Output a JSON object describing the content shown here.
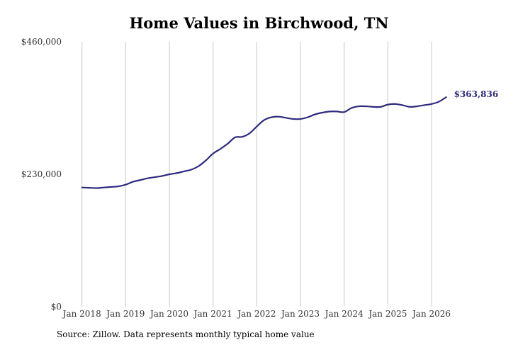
{
  "title": "Home Values in Birchwood, TN",
  "source": "Source: Zillow. Data represents monthly typical home value",
  "colors": {
    "line": "#2e2a7e",
    "grid": "#c8c8c8",
    "text": "#333333"
  },
  "chart_data": {
    "type": "line",
    "title": "Home Values in Birchwood, TN",
    "xlabel": "",
    "ylabel": "",
    "ylim": [
      0,
      460000
    ],
    "xlim": [
      "2017-08",
      "2026-08"
    ],
    "y_ticks": [
      {
        "value": 0,
        "label": "$0"
      },
      {
        "value": 230000,
        "label": "$230,000"
      },
      {
        "value": 460000,
        "label": "$460,000"
      }
    ],
    "x_ticks": [
      {
        "value": "2018-01",
        "label": "Jan 2018"
      },
      {
        "value": "2019-01",
        "label": "Jan 2019"
      },
      {
        "value": "2020-01",
        "label": "Jan 2020"
      },
      {
        "value": "2021-01",
        "label": "Jan 2021"
      },
      {
        "value": "2022-01",
        "label": "Jan 2022"
      },
      {
        "value": "2023-01",
        "label": "Jan 2023"
      },
      {
        "value": "2024-01",
        "label": "Jan 2024"
      },
      {
        "value": "2025-01",
        "label": "Jan 2025"
      },
      {
        "value": "2026-01",
        "label": "Jan 2026"
      }
    ],
    "grid": "vertical",
    "end_label": "$363,836",
    "series": [
      {
        "x": [
          "2018-01",
          "2018-03",
          "2018-05",
          "2018-07",
          "2018-09",
          "2018-11",
          "2019-01",
          "2019-03",
          "2019-05",
          "2019-07",
          "2019-09",
          "2019-11",
          "2020-01",
          "2020-03",
          "2020-05",
          "2020-07",
          "2020-09",
          "2020-11",
          "2021-01",
          "2021-03",
          "2021-05",
          "2021-07",
          "2021-09",
          "2021-11",
          "2022-01",
          "2022-03",
          "2022-05",
          "2022-07",
          "2022-09",
          "2022-11",
          "2023-01",
          "2023-03",
          "2023-05",
          "2023-07",
          "2023-09",
          "2023-11",
          "2024-01",
          "2024-03",
          "2024-05",
          "2024-07",
          "2024-09",
          "2024-11",
          "2025-01",
          "2025-03",
          "2025-05",
          "2025-07",
          "2025-09",
          "2025-11",
          "2026-01",
          "2026-03",
          "2026-05"
        ],
        "y": [
          207000,
          206500,
          206000,
          207000,
          208000,
          209000,
          212000,
          217000,
          220000,
          223000,
          225000,
          227000,
          230000,
          232000,
          235000,
          238000,
          244000,
          254000,
          266000,
          274000,
          283000,
          294000,
          295000,
          301000,
          313000,
          324000,
          329000,
          330000,
          328000,
          326000,
          326000,
          329000,
          334000,
          337000,
          339000,
          339000,
          338000,
          345000,
          348000,
          348000,
          347000,
          347000,
          351000,
          352000,
          350000,
          347000,
          348000,
          350000,
          352000,
          356000,
          363836
        ]
      }
    ]
  }
}
